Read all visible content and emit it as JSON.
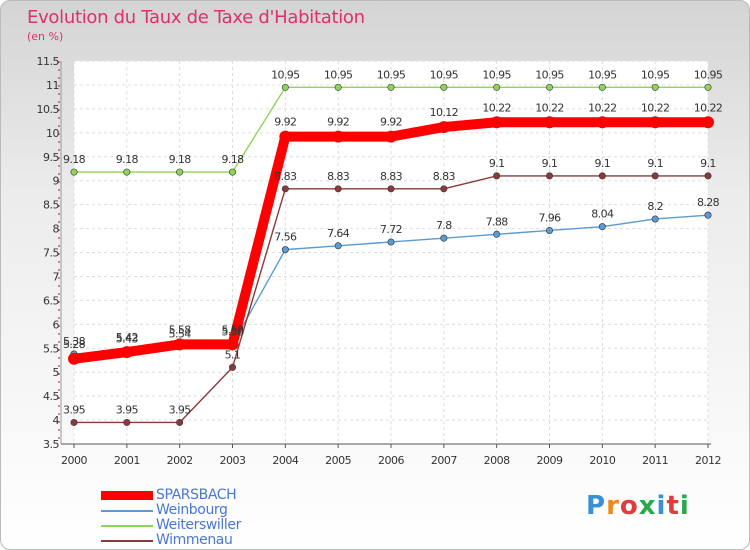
{
  "header": {
    "title": "Evolution du Taux de Taxe d'Habitation",
    "unit": "(en %)"
  },
  "logo": {
    "text": "Proxiti"
  },
  "chart_data": {
    "type": "line",
    "title": "Evolution du Taux de Taxe d'Habitation",
    "ylabel": "(en %)",
    "xlabel": "",
    "x": [
      "2000",
      "2001",
      "2002",
      "2003",
      "2004",
      "2005",
      "2006",
      "2007",
      "2008",
      "2009",
      "2010",
      "2011",
      "2012"
    ],
    "ylim": [
      3.5,
      11.5
    ],
    "yticks": [
      "3.5",
      "4",
      "4.5",
      "5",
      "5.5",
      "6",
      "6.5",
      "7",
      "7.5",
      "8",
      "8.5",
      "9",
      "9.5",
      "10",
      "10.5",
      "11",
      "11.5"
    ],
    "grid": true,
    "legend_position": "bottom-left",
    "series": [
      {
        "name": "SPARSBACH",
        "color": "#ff0000",
        "thick": true,
        "values": [
          5.28,
          5.42,
          5.58,
          5.58,
          9.92,
          9.92,
          9.92,
          10.12,
          10.22,
          10.22,
          10.22,
          10.22,
          10.22
        ],
        "labels": [
          "5.28",
          "5.42",
          "5.58",
          "5.58",
          "9.92",
          "9.92",
          "9.92",
          "10.12",
          "10.22",
          "10.22",
          "10.22",
          "10.22",
          "10.22"
        ]
      },
      {
        "name": "Weinbourg",
        "color": "#5b9bd5",
        "thick": false,
        "values": [
          5.38,
          5.43,
          5.54,
          5.58,
          7.56,
          7.64,
          7.72,
          7.8,
          7.88,
          7.96,
          8.04,
          8.2,
          8.28
        ],
        "labels": [
          "5.38",
          "5.43",
          "5.54",
          "5.58",
          "7.56",
          "7.64",
          "7.72",
          "7.8",
          "7.88",
          "7.96",
          "8.04",
          "8.2",
          "8.28"
        ]
      },
      {
        "name": "Weiterswiller",
        "color": "#8fd45a",
        "thick": false,
        "values": [
          9.18,
          9.18,
          9.18,
          9.18,
          10.95,
          10.95,
          10.95,
          10.95,
          10.95,
          10.95,
          10.95,
          10.95,
          10.95
        ],
        "labels": [
          "9.18",
          "9.18",
          "9.18",
          "9.18",
          "10.95",
          "10.95",
          "10.95",
          "10.95",
          "10.95",
          "10.95",
          "10.95",
          "10.95",
          "10.95"
        ]
      },
      {
        "name": "Wimmenau",
        "color": "#8b3a3a",
        "thick": false,
        "values": [
          3.95,
          3.95,
          3.95,
          5.1,
          8.83,
          8.83,
          8.83,
          8.83,
          9.1,
          9.1,
          9.1,
          9.1,
          9.1
        ],
        "labels": [
          "3.95",
          "3.95",
          "3.95",
          "5.1",
          "8.83",
          "8.83",
          "8.83",
          "8.83",
          "9.1",
          "9.1",
          "9.1",
          "9.1",
          "9.1"
        ]
      }
    ]
  }
}
